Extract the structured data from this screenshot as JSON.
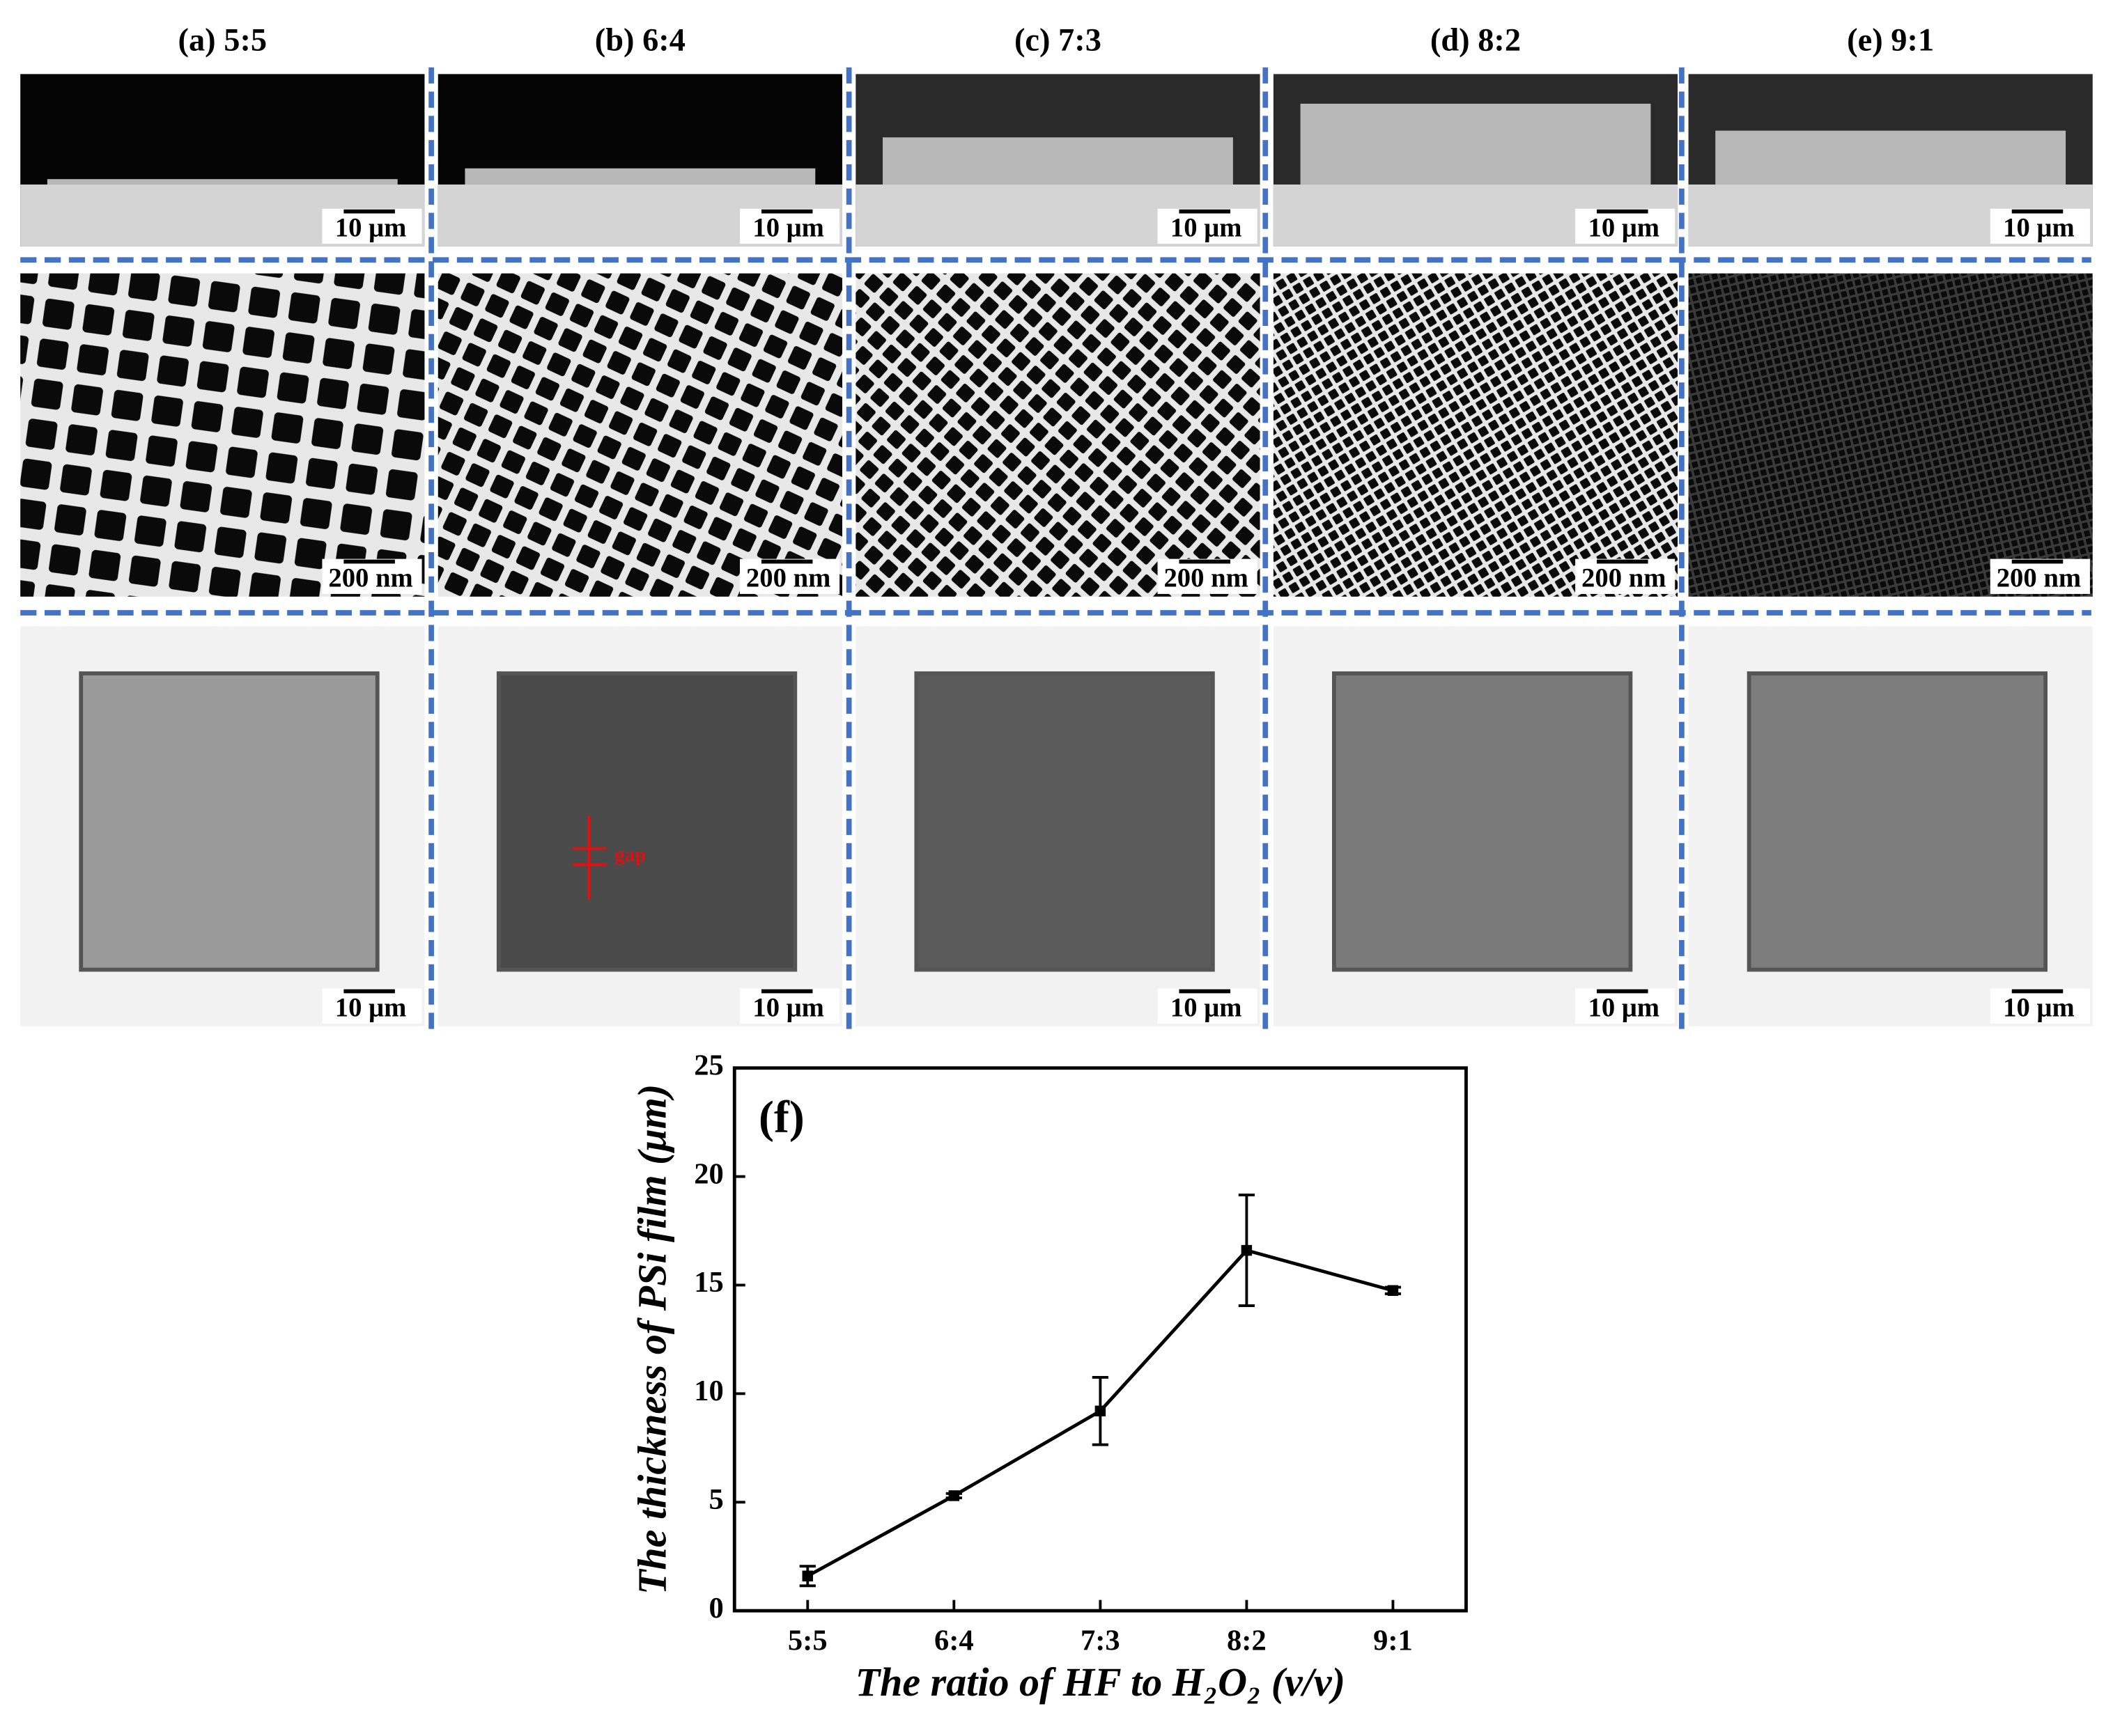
{
  "panels": [
    {
      "label": "(a) 5:5",
      "scale_bars": [
        "10 μm",
        "200 nm",
        "10 μm"
      ]
    },
    {
      "label": "(b) 6:4",
      "scale_bars": [
        "10 μm",
        "200 nm",
        "10 μm"
      ]
    },
    {
      "label": "(c) 7:3",
      "scale_bars": [
        "10 μm",
        "200 nm",
        "10 μm"
      ]
    },
    {
      "label": "(d) 8:2",
      "scale_bars": [
        "10 μm",
        "200 nm",
        "10 μm"
      ]
    },
    {
      "label": "(e) 9:1",
      "scale_bars": [
        "10 μm",
        "200 nm",
        "10 μm"
      ]
    }
  ],
  "annotation": "gap",
  "chart_data": {
    "type": "line",
    "title": "(f)",
    "x_label": "The ratio of HF to H₂O₂ (v/v)",
    "y_label": "The thickness of PSi film (μm)",
    "categories": [
      "5:5",
      "6:4",
      "7:3",
      "8:2",
      "9:1"
    ],
    "values": [
      1.6,
      5.3,
      9.2,
      16.6,
      14.75
    ],
    "errors": [
      0.45,
      0.1,
      1.55,
      2.55,
      0.15
    ],
    "color": "#000000",
    "ylim": [
      0,
      25
    ],
    "yticks": [
      0,
      5,
      10,
      15,
      20,
      25
    ]
  }
}
